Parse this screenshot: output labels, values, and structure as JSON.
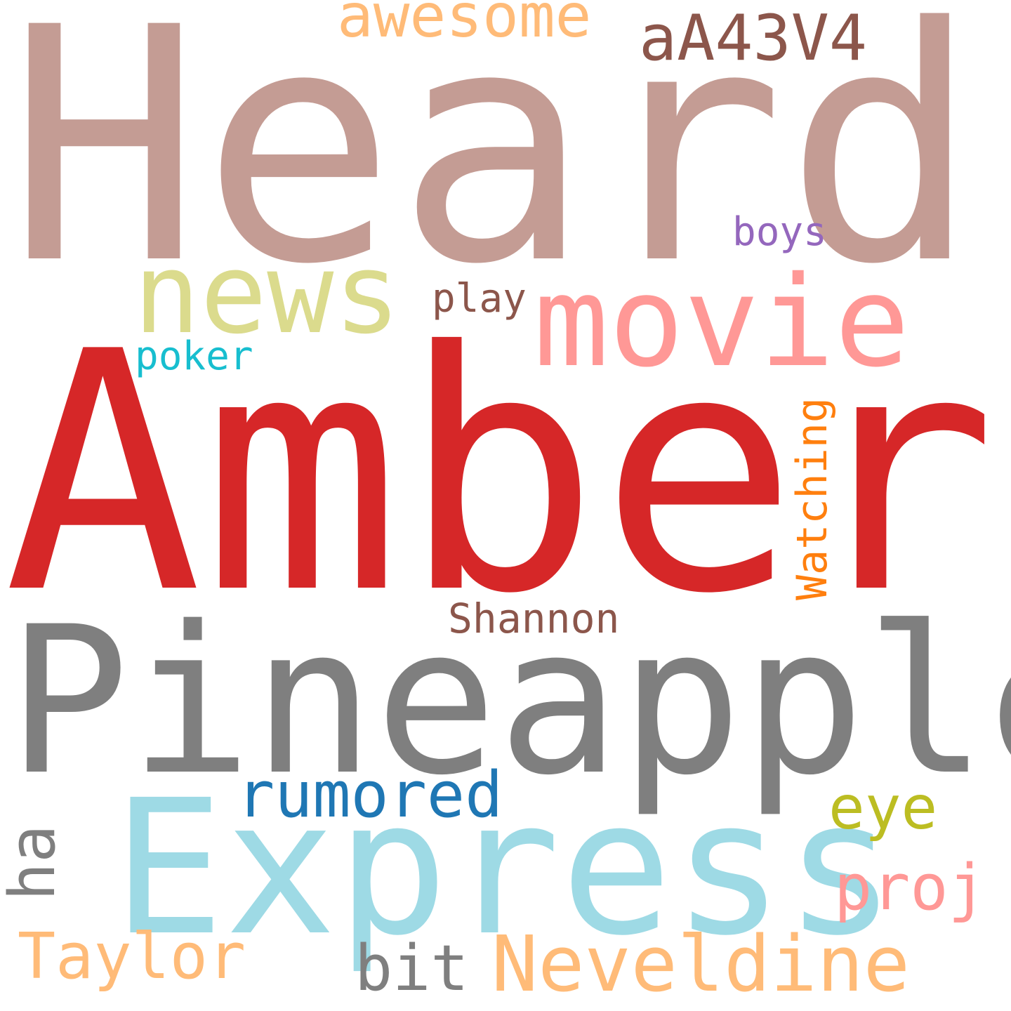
{
  "words": [
    {
      "text": "Heard",
      "color": "#c49c94",
      "orientation": "horizontal"
    },
    {
      "text": "Amber",
      "color": "#d62728",
      "orientation": "horizontal"
    },
    {
      "text": "Pineapple",
      "color": "#7f7f7f",
      "orientation": "horizontal"
    },
    {
      "text": "Express",
      "color": "#9edae5",
      "orientation": "horizontal"
    },
    {
      "text": "movie",
      "color": "#ff9896",
      "orientation": "horizontal"
    },
    {
      "text": "news",
      "color": "#dbdb8d",
      "orientation": "horizontal"
    },
    {
      "text": "awesome",
      "color": "#ffbb78",
      "orientation": "horizontal"
    },
    {
      "text": "aA43V4",
      "color": "#8c564b",
      "orientation": "horizontal"
    },
    {
      "text": "boys",
      "color": "#9467bd",
      "orientation": "horizontal"
    },
    {
      "text": "play",
      "color": "#8c564b",
      "orientation": "horizontal"
    },
    {
      "text": "poker",
      "color": "#17becf",
      "orientation": "horizontal"
    },
    {
      "text": "Watching",
      "color": "#ff7f0e",
      "orientation": "vertical"
    },
    {
      "text": "Shannon",
      "color": "#8c564b",
      "orientation": "horizontal"
    },
    {
      "text": "rumored",
      "color": "#1f77b4",
      "orientation": "horizontal"
    },
    {
      "text": "eye",
      "color": "#bcbd22",
      "orientation": "horizontal"
    },
    {
      "text": "ha",
      "color": "#7f7f7f",
      "orientation": "vertical"
    },
    {
      "text": "proj",
      "color": "#ff9896",
      "orientation": "horizontal"
    },
    {
      "text": "Taylor",
      "color": "#ffbb78",
      "orientation": "horizontal"
    },
    {
      "text": "bit",
      "color": "#7f7f7f",
      "orientation": "horizontal"
    },
    {
      "text": "Neveldine",
      "color": "#ffbb78",
      "orientation": "horizontal"
    }
  ]
}
